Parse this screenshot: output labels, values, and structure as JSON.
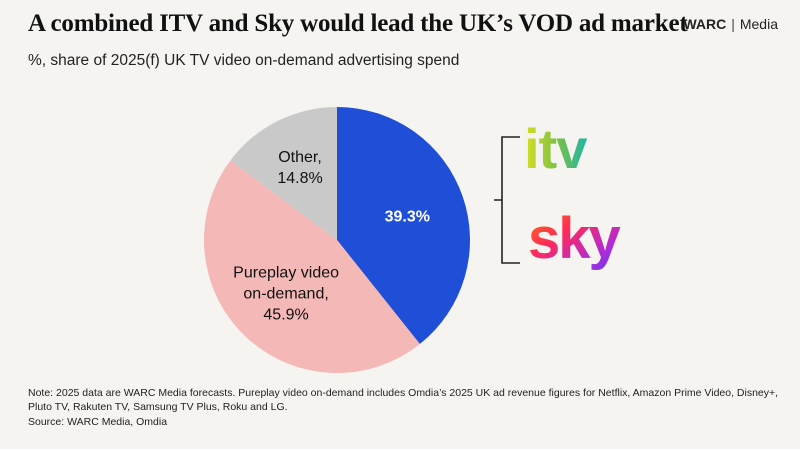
{
  "header": {
    "title": "A combined ITV and Sky would lead the UK’s VOD ad market",
    "brand_primary": "WARC",
    "brand_secondary": "Media"
  },
  "subtitle": "%, share of 2025(f) UK TV video on-demand advertising spend",
  "chart_data": {
    "type": "pie",
    "title": "A combined ITV and Sky would lead the UK’s VOD ad market",
    "subtitle": "%, share of 2025(f) UK TV video on-demand advertising spend",
    "start": "12 o'clock, clockwise",
    "slices": [
      {
        "label": "",
        "display": "39.3%",
        "value": 39.3,
        "color": "#1f4fd6",
        "label_color": "#ffffff",
        "bold": true
      },
      {
        "label": "Pureplay video on-demand",
        "display_lines": [
          "Pureplay video",
          "on-demand,",
          "45.9%"
        ],
        "value": 45.9,
        "color": "#f4b9b6",
        "label_color": "#111111"
      },
      {
        "label": "Other",
        "display_lines": [
          "Other,",
          "14.8%"
        ],
        "value": 14.8,
        "color": "#c9c9c9",
        "label_color": "#111111"
      }
    ],
    "bracket_logos": [
      "itv",
      "sky"
    ]
  },
  "logos": {
    "itv": "itv",
    "sky": "sky",
    "itv_colors": [
      "#d9e021",
      "#7fc241",
      "#1fb5a6"
    ],
    "sky_colors": [
      "#ff7a00",
      "#ff2a5a",
      "#b02bd6",
      "#5b3df5"
    ]
  },
  "footer": {
    "note": "Note: 2025 data are WARC Media forecasts. Pureplay video on-demand includes Omdia’s 2025 UK ad revenue figures for Netflix, Amazon Prime Video, Disney+, Pluto TV, Rakuten TV, Samsung TV Plus, Roku and LG.",
    "source": "Source: WARC Media, Omdia"
  }
}
